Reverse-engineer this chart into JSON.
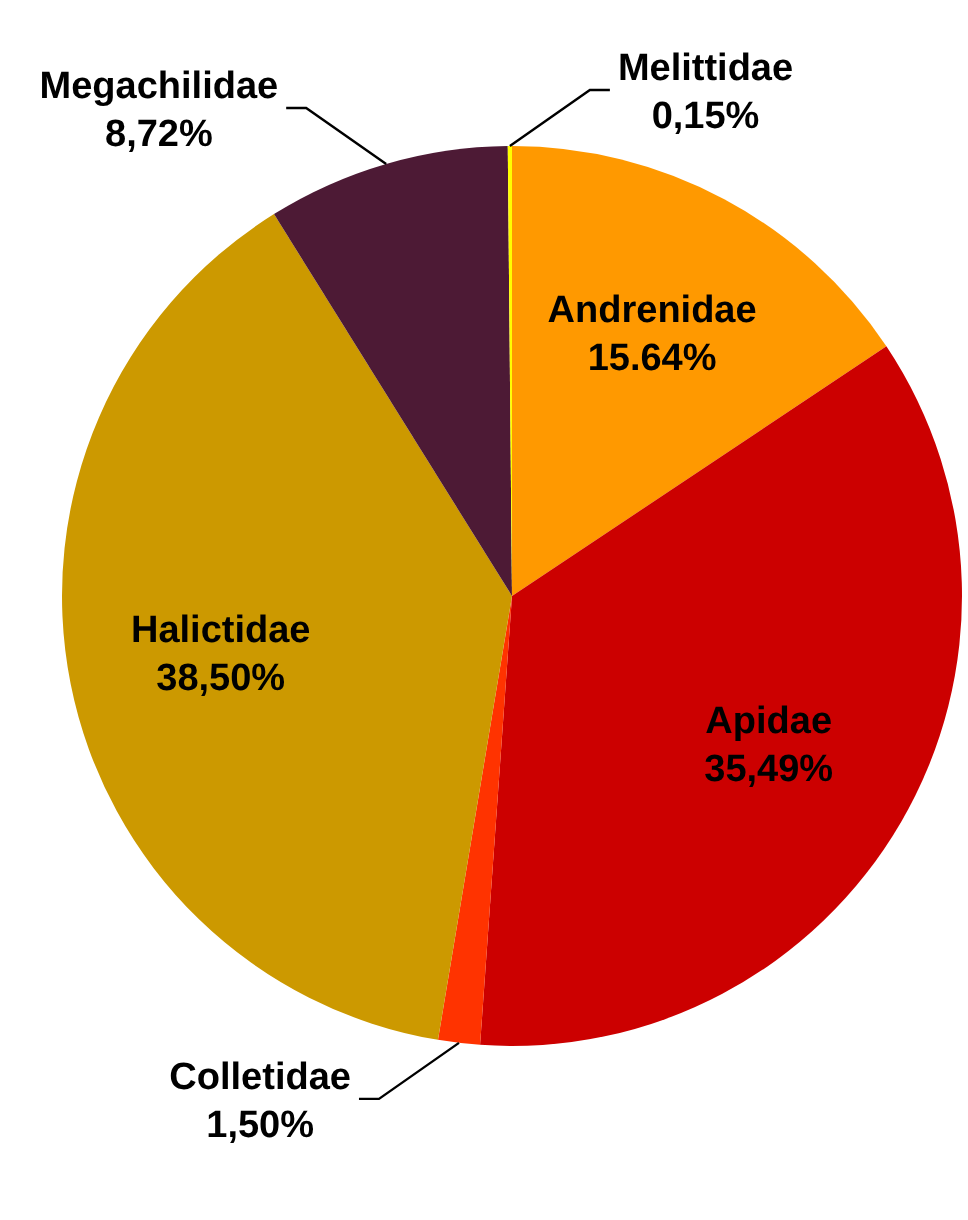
{
  "chart_data": {
    "type": "pie",
    "categories": [
      "Andrenidae",
      "Apidae",
      "Colletidae",
      "Halictidae",
      "Megachilidae",
      "Melittidae"
    ],
    "values": [
      15.64,
      35.49,
      1.5,
      38.5,
      8.72,
      0.15
    ],
    "colors": [
      "#ff9900",
      "#cc0000",
      "#ff3300",
      "#cc9900",
      "#4d1a35",
      "#ffff00"
    ],
    "value_labels": [
      "15.64%",
      "35,49%",
      "1,50%",
      "38,50%",
      "8,72%",
      "0,15%"
    ]
  }
}
